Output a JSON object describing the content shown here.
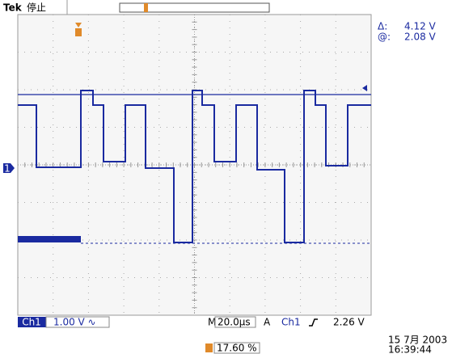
{
  "header": {
    "brand": "Tek",
    "status": "停止"
  },
  "cursor_readout": {
    "delta_label": "Δ:",
    "delta_value": "4.12 V",
    "at_label": "@:",
    "at_value": "2.08 V"
  },
  "channel_marker": "1",
  "bottom_bar": {
    "channel": "Ch1",
    "scale": "1.00 V ∿",
    "timebase_label": "M",
    "timebase": "20.0µs",
    "trigger_label": "A",
    "trigger_channel": "Ch1",
    "trigger_level": "2.26 V"
  },
  "trigger_position": "17.60 %",
  "timestamp": {
    "date": "15 7月 2003",
    "time": "16:39:44"
  }
}
